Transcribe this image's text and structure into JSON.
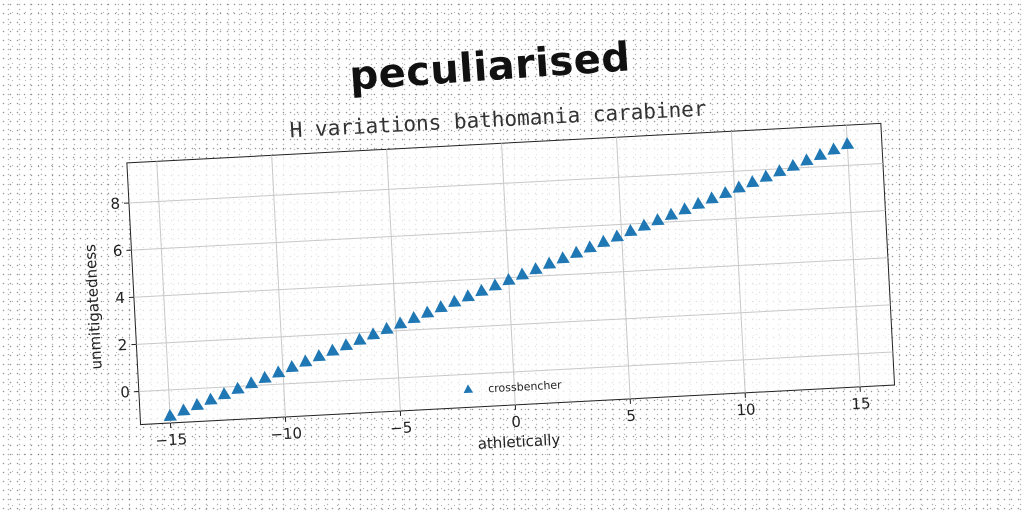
{
  "chart_data": {
    "type": "scatter",
    "title": "peculiarised",
    "subtitle": "H variations bathomania carabiner",
    "xlabel": "athletically",
    "ylabel": "unmitigatedness",
    "xlim": [
      -16.3,
      16.5
    ],
    "ylim": [
      -1.4,
      9.7
    ],
    "xticks": [
      -15,
      -10,
      -5,
      0,
      5,
      10,
      15
    ],
    "xtick_labels": [
      "−15",
      "−10",
      "−5",
      "0",
      "5",
      "10",
      "15"
    ],
    "yticks": [
      0,
      2,
      4,
      6,
      8
    ],
    "ytick_labels": [
      "0",
      "2",
      "4",
      "6",
      "8"
    ],
    "grid": true,
    "legend": {
      "position": "lower center",
      "entries": [
        "crossbencher"
      ]
    },
    "marker": "triangle",
    "color": "#1f77b4",
    "series": [
      {
        "name": "crossbencher",
        "x": [
          -15.0,
          -14.4,
          -13.8,
          -13.2,
          -12.6,
          -12.0,
          -11.4,
          -10.8,
          -10.2,
          -9.6,
          -9.0,
          -8.4,
          -7.8,
          -7.2,
          -6.6,
          -6.0,
          -5.4,
          -4.8,
          -4.2,
          -3.6,
          -3.0,
          -2.4,
          -1.8,
          -1.2,
          -0.6,
          0.0,
          0.6,
          1.2,
          1.8,
          2.4,
          3.0,
          3.6,
          4.2,
          4.8,
          5.4,
          6.0,
          6.6,
          7.2,
          7.8,
          8.4,
          9.0,
          9.6,
          10.2,
          10.8,
          11.4,
          12.0,
          12.6,
          13.2,
          13.8,
          14.4,
          15.0
        ],
        "y": [
          -1.1,
          -0.9,
          -0.7,
          -0.5,
          -0.3,
          -0.1,
          0.1,
          0.3,
          0.5,
          0.7,
          0.9,
          1.1,
          1.3,
          1.5,
          1.7,
          1.9,
          2.1,
          2.3,
          2.5,
          2.7,
          2.9,
          3.1,
          3.3,
          3.5,
          3.7,
          3.9,
          4.1,
          4.3,
          4.5,
          4.7,
          4.9,
          5.1,
          5.3,
          5.5,
          5.7,
          5.9,
          6.1,
          6.3,
          6.5,
          6.7,
          6.9,
          7.1,
          7.3,
          7.5,
          7.7,
          7.9,
          8.1,
          8.3,
          8.5,
          8.7,
          8.9
        ]
      }
    ]
  }
}
